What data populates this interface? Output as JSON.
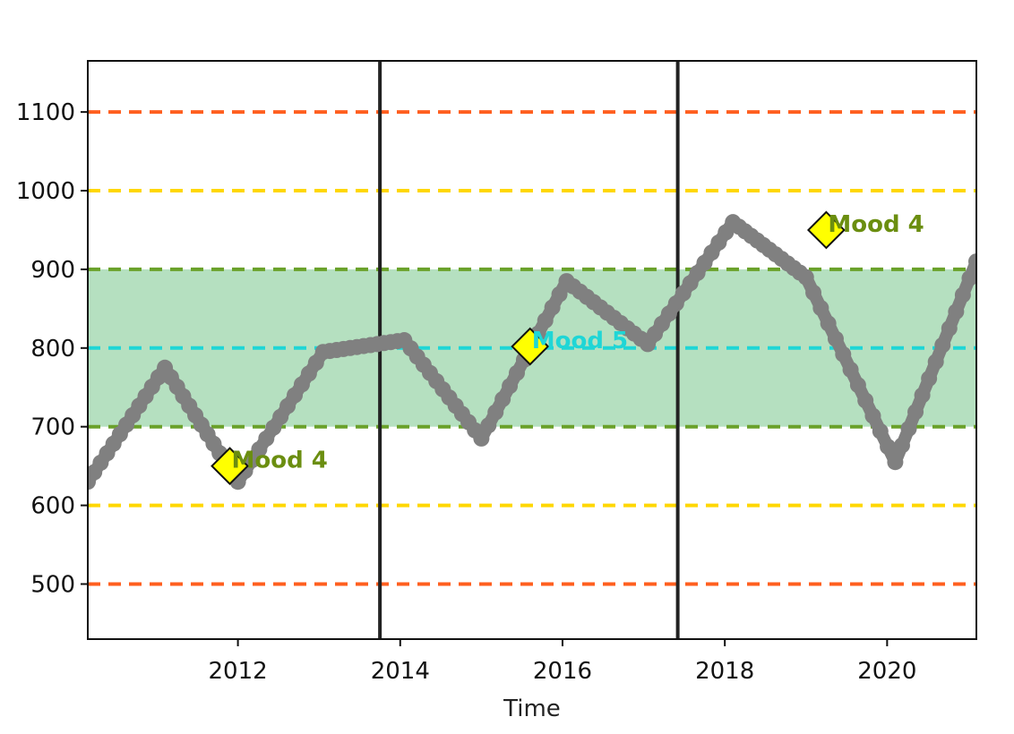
{
  "chart_data": {
    "type": "line",
    "title": "",
    "xlabel": "Time",
    "ylabel": "",
    "xlim": [
      2010.15,
      2021.1
    ],
    "ylim": [
      430,
      1165
    ],
    "x_ticks": [
      2012,
      2014,
      2016,
      2018,
      2020
    ],
    "x_tick_labels": [
      "2012",
      "2014",
      "2016",
      "2018",
      "2020"
    ],
    "y_ticks": [
      500,
      600,
      700,
      800,
      900,
      1000,
      1100
    ],
    "y_tick_labels": [
      "500",
      "600",
      "700",
      "800",
      "900",
      "1000",
      "1100"
    ],
    "grid": false,
    "series": [
      {
        "color": "#808080",
        "marker": "circle",
        "x": [
          2010.15,
          2011.1,
          2012.0,
          2013.05,
          2014.05,
          2015.0,
          2016.05,
          2017.05,
          2018.1,
          2019.0,
          2020.1,
          2021.1
        ],
        "y": [
          630,
          775,
          630,
          795,
          810,
          685,
          885,
          805,
          960,
          890,
          655,
          910
        ]
      }
    ],
    "shaded_band": {
      "y_from": 700,
      "y_to": 900,
      "color": "#a8dab5"
    },
    "reference_lines": [
      {
        "y": 1100,
        "color": "#ff5f1f",
        "style": "dashed"
      },
      {
        "y": 1000,
        "color": "#ffd700",
        "style": "dashed"
      },
      {
        "y": 900,
        "color": "#6aa12a",
        "style": "dashed"
      },
      {
        "y": 800,
        "color": "#1fd6d6",
        "style": "dashed"
      },
      {
        "y": 700,
        "color": "#6aa12a",
        "style": "dashed"
      },
      {
        "y": 600,
        "color": "#ffd700",
        "style": "dashed"
      },
      {
        "y": 500,
        "color": "#ff5f1f",
        "style": "dashed"
      }
    ],
    "vertical_lines": [
      2013.75,
      2017.42
    ],
    "annotations": [
      {
        "x": 2011.9,
        "y": 650,
        "text": "Mood 4",
        "color": "#6b8e10",
        "marker_color": "#ffff00"
      },
      {
        "x": 2015.6,
        "y": 802,
        "text": "Mood 5",
        "color": "#1fd6d6",
        "marker_color": "#ffff00"
      },
      {
        "x": 2019.25,
        "y": 950,
        "text": "Mood 4",
        "color": "#6b8e10",
        "marker_color": "#ffff00"
      }
    ]
  }
}
